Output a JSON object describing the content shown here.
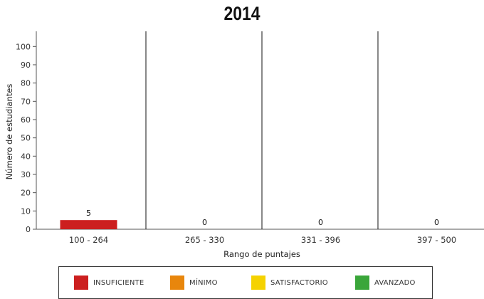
{
  "chart_data": {
    "type": "bar",
    "title": "2014",
    "xlabel": "Rango de puntajes",
    "ylabel": "Número de estudiantes",
    "ylim": [
      0,
      100
    ],
    "yticks": [
      0,
      10,
      20,
      30,
      40,
      50,
      60,
      70,
      80,
      90,
      100
    ],
    "categories": [
      "100 - 264",
      "265 - 330",
      "331 - 396",
      "397 - 500"
    ],
    "values": [
      5,
      0,
      0,
      0
    ],
    "bar_colors": [
      "#cc1f1f",
      "#e8860c",
      "#f5d200",
      "#3aa63a"
    ],
    "grid": false,
    "legend": {
      "position": "bottom",
      "items": [
        {
          "label": "INSUFICIENTE",
          "color": "#cc1f1f"
        },
        {
          "label": "MÍNIMO",
          "color": "#e8860c"
        },
        {
          "label": "SATISFACTORIO",
          "color": "#f5d200"
        },
        {
          "label": "AVANZADO",
          "color": "#3aa63a"
        }
      ]
    }
  }
}
